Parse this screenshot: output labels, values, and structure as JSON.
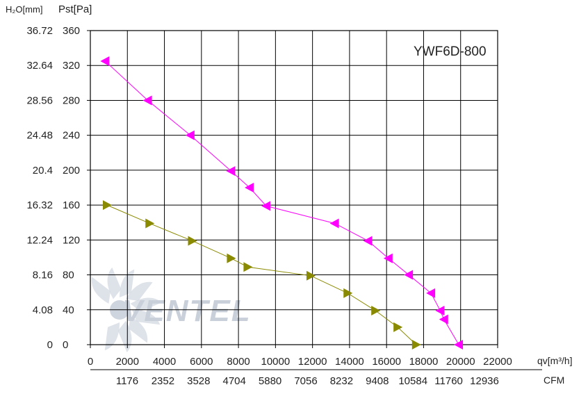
{
  "chart_data": {
    "type": "line",
    "title": "YWF6D-800",
    "watermark": "VENTEL",
    "left_axis_unit": "H₂O[mm]",
    "ylabel": "Pst[Pa]",
    "xlabel": "qv[m³/h]",
    "x2label": "CFM",
    "xlim": [
      0,
      22000
    ],
    "ylim": [
      0,
      360
    ],
    "x_ticks": [
      "0",
      "2000",
      "4000",
      "6000",
      "8000",
      "10000",
      "12000",
      "14000",
      "16000",
      "18000",
      "20000",
      "22000"
    ],
    "y_ticks": [
      "0",
      "40",
      "80",
      "120",
      "160",
      "200",
      "240",
      "280",
      "320",
      "360"
    ],
    "h2o_ticks": [
      "0",
      "4.08",
      "8.16",
      "12.24",
      "16.32",
      "20.4",
      "24.48",
      "28.56",
      "32.64",
      "36.72"
    ],
    "cfm_ticks": [
      "1176",
      "2352",
      "3528",
      "4704",
      "5880",
      "7056",
      "8232",
      "9408",
      "10584",
      "11760",
      "12936"
    ],
    "grid": true,
    "series": [
      {
        "color": "#ff00ff",
        "marker": "triangle-left",
        "points": [
          [
            800,
            325
          ],
          [
            3100,
            280
          ],
          [
            5400,
            240
          ],
          [
            7600,
            199
          ],
          [
            8600,
            180
          ],
          [
            9500,
            159
          ],
          [
            13200,
            139
          ],
          [
            15000,
            119
          ],
          [
            16100,
            99
          ],
          [
            17200,
            80
          ],
          [
            18400,
            59
          ],
          [
            18900,
            39
          ],
          [
            19100,
            29
          ],
          [
            19900,
            0
          ]
        ]
      },
      {
        "color": "#8a8a00",
        "marker": "triangle-right",
        "points": [
          [
            900,
            160
          ],
          [
            3200,
            139
          ],
          [
            5500,
            119
          ],
          [
            7600,
            99
          ],
          [
            8500,
            89
          ],
          [
            11900,
            79
          ],
          [
            13900,
            59
          ],
          [
            15400,
            39
          ],
          [
            16600,
            20
          ],
          [
            17600,
            0
          ]
        ]
      }
    ]
  }
}
